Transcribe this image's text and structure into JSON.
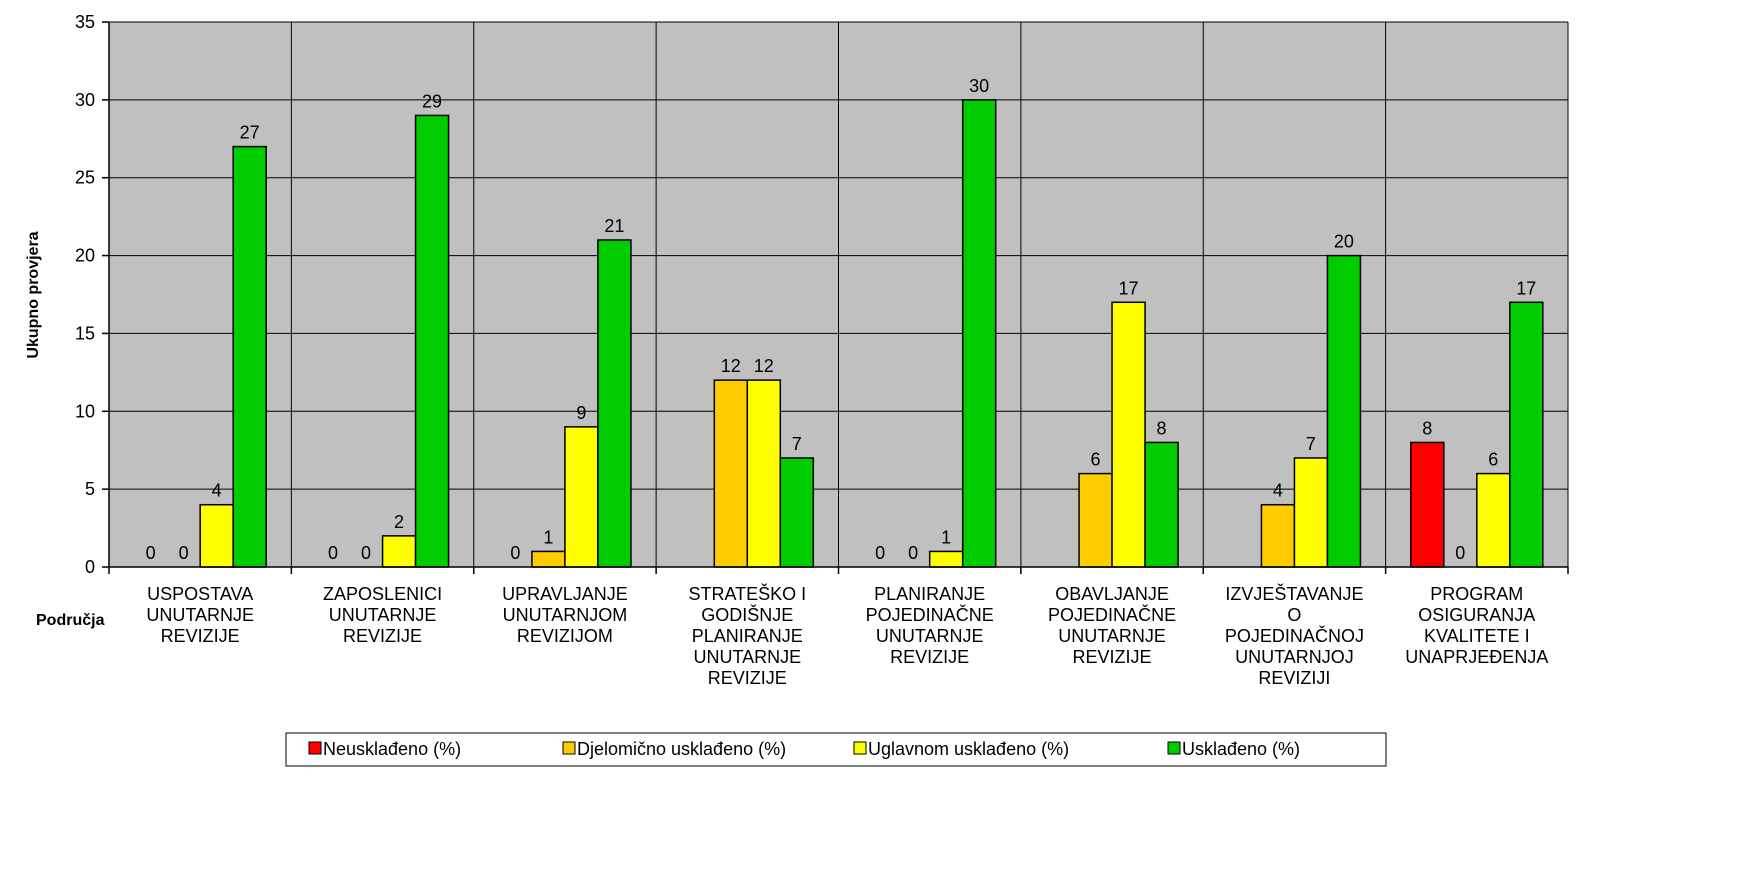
{
  "chart_data": {
    "type": "bar",
    "ylabel": "Ukupno provjera",
    "xlabel": "Područja",
    "ylim": [
      0,
      35
    ],
    "yticks": [
      0,
      5,
      10,
      15,
      20,
      25,
      30,
      35
    ],
    "grid": true,
    "legend_position": "bottom",
    "categories": [
      [
        "USPOSTAVA",
        "UNUTARNJE",
        "REVIZIJE"
      ],
      [
        "ZAPOSLENICI",
        "UNUTARNJE",
        "REVIZIJE"
      ],
      [
        "UPRAVLJANJE",
        "UNUTARNJOM",
        "REVIZIJOM"
      ],
      [
        "STRATEŠKO I",
        "GODIŠNJE",
        "PLANIRANJE",
        "UNUTARNJE",
        "REVIZIJE"
      ],
      [
        "PLANIRANJE",
        "POJEDINAČNE",
        "UNUTARNJE",
        "REVIZIJE"
      ],
      [
        "OBAVLJANJE",
        "POJEDINAČNE",
        "UNUTARNJE",
        "REVIZIJE"
      ],
      [
        "IZVJEŠTAVANJE",
        "O",
        "POJEDINAČNOJ",
        "UNUTARNJOJ",
        "REVIZIJI"
      ],
      [
        "PROGRAM",
        "OSIGURANJA",
        "KVALITETE I",
        "UNAPRJEĐENJA"
      ]
    ],
    "series": [
      {
        "name": "Neusklađeno (%)",
        "color": "#ff0000",
        "values": [
          0,
          0,
          0,
          null,
          0,
          null,
          null,
          8
        ]
      },
      {
        "name": "Djelomično usklađeno (%)",
        "color": "#ffcc00",
        "values": [
          0,
          0,
          1,
          12,
          0,
          6,
          4,
          0
        ]
      },
      {
        "name": "Uglavnom usklađeno (%)",
        "color": "#ffff00",
        "values": [
          4,
          2,
          9,
          12,
          1,
          17,
          7,
          6
        ]
      },
      {
        "name": "Usklađeno (%)",
        "color": "#00cc00",
        "values": [
          27,
          29,
          21,
          7,
          30,
          8,
          20,
          17
        ]
      }
    ],
    "colors": {
      "plot_background": "#c0c0c0",
      "grid": "#000000",
      "bar_stroke": "#000000"
    }
  }
}
